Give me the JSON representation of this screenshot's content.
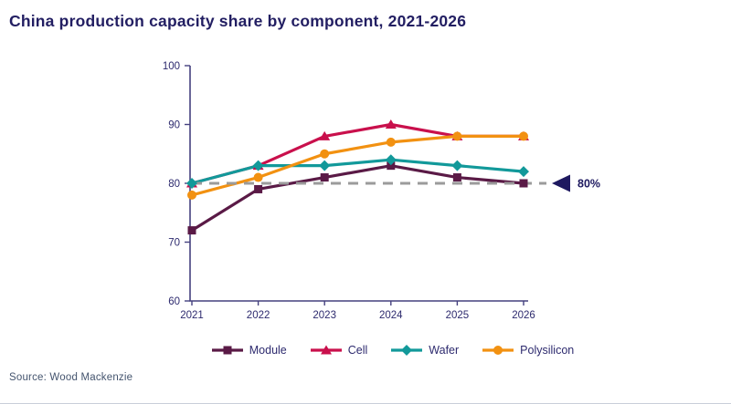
{
  "page": {
    "title": "China production capacity share by component, 2021-2026",
    "source": "Source: Wood Mackenzie"
  },
  "chart_data": {
    "type": "line",
    "title": "China production capacity share by component, 2021-2026",
    "categories": [
      "2021",
      "2022",
      "2023",
      "2024",
      "2025",
      "2026"
    ],
    "series": [
      {
        "name": "Module",
        "marker": "square",
        "color": "#5a1a46",
        "values": [
          72,
          79,
          81,
          83,
          81,
          80
        ]
      },
      {
        "name": "Cell",
        "marker": "triangle",
        "color": "#c9104c",
        "values": [
          80,
          83,
          88,
          90,
          88,
          88
        ]
      },
      {
        "name": "Wafer",
        "marker": "diamond",
        "color": "#12999a",
        "values": [
          80,
          83,
          83,
          84,
          83,
          82
        ]
      },
      {
        "name": "Polysilicon",
        "marker": "circle",
        "color": "#f29111",
        "values": [
          78,
          81,
          85,
          87,
          88,
          88
        ]
      }
    ],
    "xlabel": "",
    "ylabel": "",
    "ylim": [
      60,
      100
    ],
    "yticks": [
      60,
      70,
      80,
      90,
      100
    ],
    "grid": false,
    "legend_position": "bottom",
    "reference_line": {
      "value": 80,
      "label": "80%",
      "style": "dashed",
      "color": "#9b9b9b"
    },
    "colors": {
      "axis": "#45417f",
      "tick_labels": "#2d2a6e",
      "annotation": "#1e1960"
    }
  }
}
